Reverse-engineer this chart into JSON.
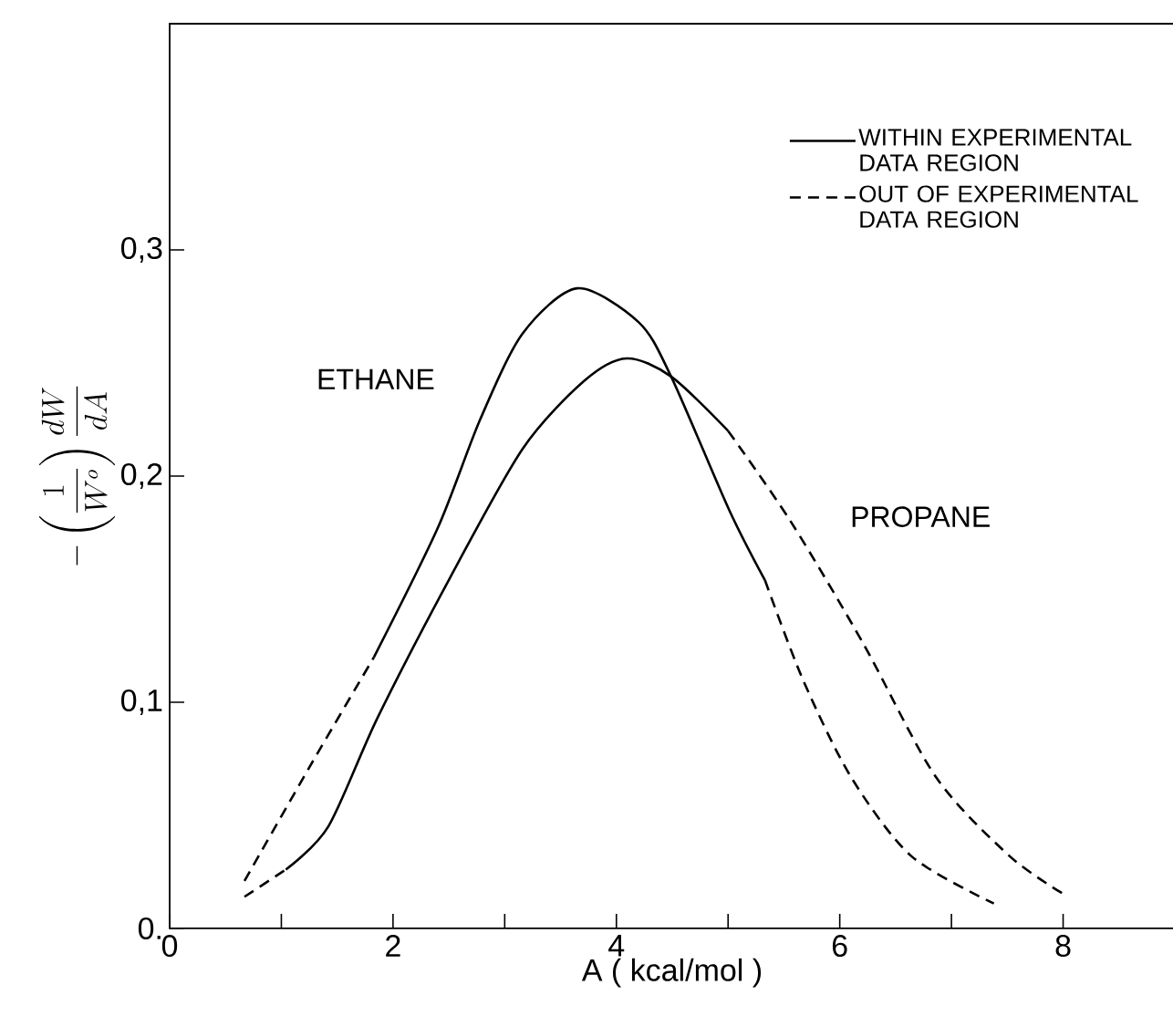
{
  "chart_data": {
    "type": "line",
    "xlabel": "A  ( kcal/mol )",
    "ylabel": "-\\left(\\frac{1}{W^{o}}\\right)\\frac{dW}{dA}",
    "xlim": [
      0,
      9
    ],
    "ylim": [
      0,
      0.4
    ],
    "xticks": [
      0,
      {
        "value": 1,
        "label": null
      },
      2,
      {
        "value": 3,
        "label": null
      },
      4,
      {
        "value": 5,
        "label": null
      },
      6,
      {
        "value": 7,
        "label": null
      },
      8
    ],
    "yticks": [
      {
        "value": 0,
        "label": "0."
      },
      {
        "value": 0.1,
        "label": "0,1"
      },
      {
        "value": 0.2,
        "label": "0,2"
      },
      {
        "value": 0.3,
        "label": "0,3"
      }
    ],
    "grid": false,
    "legend": "top right",
    "marker": "none",
    "series": [
      {
        "name": "WITHIN EXPERIMENTAL DATA REGION",
        "color": "#000000",
        "line_style": "solid",
        "x": [
          1.83,
          2.4,
          2.78,
          3.16,
          3.65,
          4.2,
          4.49,
          5.01,
          5.33
        ],
        "values": [
          0.12,
          0.177,
          0.225,
          0.263,
          0.283,
          0.268,
          0.244,
          0.185,
          0.154
        ]
      },
      {
        "name": "OUT OF EXPERIMENTAL DATA REGION",
        "color": "#000000",
        "line_style": "dashed",
        "x": [
          0.67,
          1.26,
          1.83
        ],
        "values": [
          0.021,
          0.072,
          0.12
        ]
      },
      {
        "color": "#000000",
        "line_style": "dashed",
        "x": [
          5.33,
          5.67,
          6.1,
          6.64,
          7.38
        ],
        "values": [
          0.154,
          0.11,
          0.067,
          0.032,
          0.011
        ]
      },
      {
        "color": "#000000",
        "line_style": "dashed",
        "x": [
          0.67,
          1.04
        ],
        "values": [
          0.014,
          0.026
        ]
      },
      {
        "color": "#000000",
        "line_style": "solid",
        "x": [
          1.04,
          1.42,
          1.86,
          2.51,
          3.16,
          3.71,
          4.09,
          4.49,
          5.0
        ],
        "values": [
          0.026,
          0.045,
          0.093,
          0.155,
          0.212,
          0.242,
          0.252,
          0.244,
          0.22
        ]
      },
      {
        "color": "#000000",
        "line_style": "dashed",
        "x": [
          5.0,
          5.56,
          6.21,
          6.86,
          7.52,
          8.01
        ],
        "values": [
          0.22,
          0.18,
          0.126,
          0.067,
          0.032,
          0.015
        ]
      }
    ],
    "annotations": [
      "ETHANE",
      "PROPANE"
    ]
  }
}
